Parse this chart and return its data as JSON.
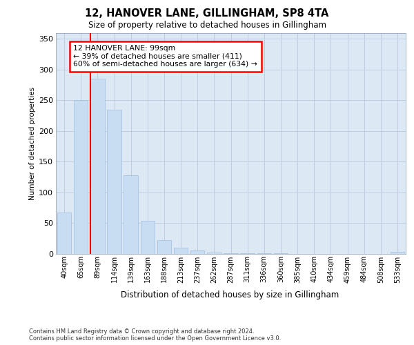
{
  "title": "12, HANOVER LANE, GILLINGHAM, SP8 4TA",
  "subtitle": "Size of property relative to detached houses in Gillingham",
  "xlabel": "Distribution of detached houses by size in Gillingham",
  "ylabel": "Number of detached properties",
  "bar_color": "#c9ddf2",
  "bar_edgecolor": "#a8c4e0",
  "grid_color": "#bfcde0",
  "background_color": "#dde8f5",
  "fig_background": "#ffffff",
  "categories": [
    "40sqm",
    "65sqm",
    "89sqm",
    "114sqm",
    "139sqm",
    "163sqm",
    "188sqm",
    "213sqm",
    "237sqm",
    "262sqm",
    "287sqm",
    "311sqm",
    "336sqm",
    "360sqm",
    "385sqm",
    "410sqm",
    "434sqm",
    "459sqm",
    "484sqm",
    "508sqm",
    "533sqm"
  ],
  "values": [
    67,
    250,
    285,
    235,
    128,
    53,
    22,
    10,
    5,
    2,
    1,
    1,
    1,
    1,
    0,
    0,
    0,
    0,
    0,
    0,
    3
  ],
  "property_bar_index": 2,
  "annotation_text": "12 HANOVER LANE: 99sqm\n← 39% of detached houses are smaller (411)\n60% of semi-detached houses are larger (634) →",
  "annotation_box_color": "white",
  "annotation_box_edgecolor": "red",
  "vline_color": "red",
  "ylim": [
    0,
    360
  ],
  "yticks": [
    0,
    50,
    100,
    150,
    200,
    250,
    300,
    350
  ],
  "footer1": "Contains HM Land Registry data © Crown copyright and database right 2024.",
  "footer2": "Contains public sector information licensed under the Open Government Licence v3.0."
}
